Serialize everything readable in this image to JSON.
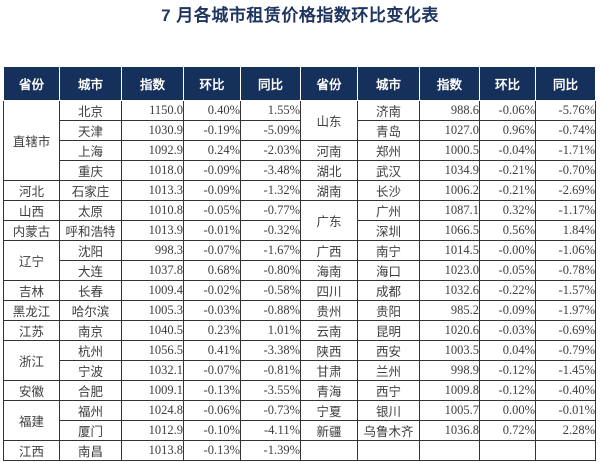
{
  "chart_data": {
    "type": "table",
    "title": "7 月各城市租赁价格指数环比变化表",
    "columns": [
      "省份",
      "城市",
      "指数",
      "环比",
      "同比"
    ],
    "left_groups": [
      {
        "province": "直辖市",
        "cities": [
          [
            "北京",
            "1150.0",
            "0.40%",
            "1.55%"
          ],
          [
            "天津",
            "1030.9",
            "-0.19%",
            "-5.09%"
          ],
          [
            "上海",
            "1092.9",
            "0.24%",
            "-2.03%"
          ],
          [
            "重庆",
            "1018.0",
            "-0.09%",
            "-3.48%"
          ]
        ]
      },
      {
        "province": "河北",
        "cities": [
          [
            "石家庄",
            "1013.3",
            "-0.09%",
            "-1.32%"
          ]
        ]
      },
      {
        "province": "山西",
        "cities": [
          [
            "太原",
            "1010.8",
            "-0.05%",
            "-0.77%"
          ]
        ]
      },
      {
        "province": "内蒙古",
        "cities": [
          [
            "呼和浩特",
            "1013.9",
            "-0.01%",
            "-0.32%"
          ]
        ]
      },
      {
        "province": "辽宁",
        "cities": [
          [
            "沈阳",
            "998.3",
            "-0.07%",
            "-1.67%"
          ],
          [
            "大连",
            "1037.8",
            "0.68%",
            "-0.80%"
          ]
        ]
      },
      {
        "province": "吉林",
        "cities": [
          [
            "长春",
            "1009.4",
            "-0.02%",
            "-0.58%"
          ]
        ]
      },
      {
        "province": "黑龙江",
        "cities": [
          [
            "哈尔滨",
            "1005.3",
            "-0.03%",
            "-0.88%"
          ]
        ]
      },
      {
        "province": "江苏",
        "cities": [
          [
            "南京",
            "1040.5",
            "0.23%",
            "1.01%"
          ]
        ]
      },
      {
        "province": "浙江",
        "cities": [
          [
            "杭州",
            "1056.5",
            "0.41%",
            "-3.38%"
          ],
          [
            "宁波",
            "1032.1",
            "-0.07%",
            "-0.81%"
          ]
        ]
      },
      {
        "province": "安徽",
        "cities": [
          [
            "合肥",
            "1009.1",
            "-0.13%",
            "-3.55%"
          ]
        ]
      },
      {
        "province": "福建",
        "cities": [
          [
            "福州",
            "1024.8",
            "-0.06%",
            "-0.73%"
          ],
          [
            "厦门",
            "1012.9",
            "-0.10%",
            "-4.11%"
          ]
        ]
      },
      {
        "province": "江西",
        "cities": [
          [
            "南昌",
            "1013.8",
            "-0.13%",
            "-1.39%"
          ]
        ]
      }
    ],
    "right_groups": [
      {
        "province": "山东",
        "cities": [
          [
            "济南",
            "988.6",
            "-0.06%",
            "-5.76%"
          ],
          [
            "青岛",
            "1027.0",
            "0.96%",
            "-0.74%"
          ]
        ]
      },
      {
        "province": "河南",
        "cities": [
          [
            "郑州",
            "1000.5",
            "-0.04%",
            "-1.71%"
          ]
        ]
      },
      {
        "province": "湖北",
        "cities": [
          [
            "武汉",
            "1034.9",
            "-0.21%",
            "-0.70%"
          ]
        ]
      },
      {
        "province": "湖南",
        "cities": [
          [
            "长沙",
            "1006.2",
            "-0.21%",
            "-2.69%"
          ]
        ]
      },
      {
        "province": "广东",
        "cities": [
          [
            "广州",
            "1087.1",
            "0.32%",
            "-1.17%"
          ],
          [
            "深圳",
            "1066.5",
            "0.56%",
            "1.84%"
          ]
        ]
      },
      {
        "province": "广西",
        "cities": [
          [
            "南宁",
            "1014.5",
            "-0.00%",
            "-1.06%"
          ]
        ]
      },
      {
        "province": "海南",
        "cities": [
          [
            "海口",
            "1023.0",
            "-0.05%",
            "-0.78%"
          ]
        ]
      },
      {
        "province": "四川",
        "cities": [
          [
            "成都",
            "1032.6",
            "-0.22%",
            "-1.57%"
          ]
        ]
      },
      {
        "province": "贵州",
        "cities": [
          [
            "贵阳",
            "985.2",
            "-0.09%",
            "-1.97%"
          ]
        ]
      },
      {
        "province": "云南",
        "cities": [
          [
            "昆明",
            "1020.6",
            "-0.03%",
            "-0.69%"
          ]
        ]
      },
      {
        "province": "陕西",
        "cities": [
          [
            "西安",
            "1003.5",
            "0.04%",
            "-0.79%"
          ]
        ]
      },
      {
        "province": "甘肃",
        "cities": [
          [
            "兰州",
            "998.9",
            "-0.12%",
            "-1.45%"
          ]
        ]
      },
      {
        "province": "青海",
        "cities": [
          [
            "西宁",
            "1009.8",
            "-0.12%",
            "-0.40%"
          ]
        ]
      },
      {
        "province": "宁夏",
        "cities": [
          [
            "银川",
            "1005.7",
            "0.00%",
            "-0.01%"
          ]
        ]
      },
      {
        "province": "新疆",
        "cities": [
          [
            "乌鲁木齐",
            "1036.8",
            "0.72%",
            "2.28%"
          ]
        ]
      },
      {
        "province": "",
        "cities": [
          [
            "",
            "",
            "",
            ""
          ]
        ]
      }
    ],
    "colors": {
      "header_bg": "#16305c",
      "title_text": "#1e3560",
      "body_text": "#3d3d3d",
      "border": "#333333"
    }
  }
}
